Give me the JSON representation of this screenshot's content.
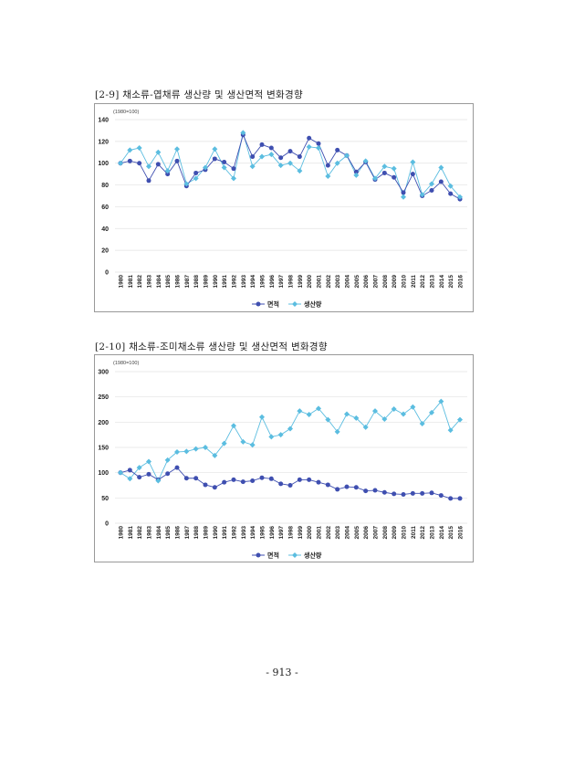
{
  "page_number": "- 913 -",
  "chart_data": [
    {
      "type": "line",
      "title": "[2-9] 채소류-엽채류 생산량 및 생산면적 변화경향",
      "unit_note": "(1980=100)",
      "ylim": [
        0,
        140
      ],
      "yticks": [
        0,
        20,
        40,
        60,
        80,
        100,
        120,
        140
      ],
      "categories": [
        "1980",
        "1981",
        "1982",
        "1983",
        "1984",
        "1985",
        "1986",
        "1987",
        "1988",
        "1989",
        "1990",
        "1991",
        "1992",
        "1993",
        "1994",
        "1995",
        "1996",
        "1997",
        "1998",
        "1999",
        "2000",
        "2001",
        "2002",
        "2003",
        "2004",
        "2005",
        "2006",
        "2007",
        "2008",
        "2009",
        "2010",
        "2011",
        "2012",
        "2013",
        "2014",
        "2015",
        "2016"
      ],
      "legend_position": "bottom",
      "grid": true,
      "series": [
        {
          "name": "면적",
          "color": "#3f4fb0",
          "marker": "circle",
          "values": [
            100,
            102,
            100,
            84,
            99,
            90,
            102,
            79,
            91,
            94,
            104,
            101,
            95,
            126,
            106,
            117,
            114,
            105,
            111,
            106,
            123,
            118,
            98,
            112,
            107,
            92,
            101,
            85,
            91,
            87,
            73,
            90,
            70,
            75,
            83,
            72,
            67
          ]
        },
        {
          "name": "생산량",
          "color": "#5bbde0",
          "marker": "diamond",
          "values": [
            100,
            112,
            114,
            97,
            110,
            93,
            113,
            81,
            86,
            96,
            113,
            96,
            86,
            128,
            97,
            106,
            108,
            98,
            100,
            93,
            115,
            114,
            88,
            100,
            107,
            89,
            102,
            86,
            97,
            95,
            69,
            101,
            71,
            81,
            96,
            79,
            69
          ]
        }
      ]
    },
    {
      "type": "line",
      "title": "[2-10] 채소류-조미채소류 생산량 및 생산면적 변화경향",
      "unit_note": "(1980=100)",
      "ylim": [
        0,
        300
      ],
      "yticks": [
        0,
        50,
        100,
        150,
        200,
        250,
        300
      ],
      "categories": [
        "1980",
        "1981",
        "1982",
        "1983",
        "1984",
        "1985",
        "1986",
        "1987",
        "1988",
        "1989",
        "1990",
        "1991",
        "1992",
        "1993",
        "1994",
        "1995",
        "1996",
        "1997",
        "1998",
        "1999",
        "2000",
        "2001",
        "2002",
        "2003",
        "2004",
        "2005",
        "2006",
        "2007",
        "2008",
        "2009",
        "2010",
        "2011",
        "2012",
        "2013",
        "2014",
        "2015",
        "2016"
      ],
      "legend_position": "bottom",
      "grid": true,
      "series": [
        {
          "name": "면적",
          "color": "#3f4fb0",
          "marker": "circle",
          "values": [
            100,
            105,
            91,
            97,
            86,
            98,
            110,
            89,
            89,
            76,
            71,
            81,
            86,
            82,
            84,
            90,
            88,
            78,
            75,
            86,
            86,
            81,
            76,
            67,
            72,
            71,
            64,
            65,
            61,
            58,
            57,
            59,
            59,
            60,
            55,
            49,
            49
          ]
        },
        {
          "name": "생산량",
          "color": "#5bbde0",
          "marker": "diamond",
          "values": [
            100,
            88,
            110,
            122,
            84,
            125,
            141,
            142,
            147,
            150,
            134,
            158,
            193,
            161,
            155,
            210,
            171,
            175,
            187,
            222,
            215,
            227,
            205,
            181,
            216,
            208,
            190,
            222,
            206,
            226,
            216,
            230,
            197,
            219,
            241,
            184,
            205
          ]
        }
      ]
    }
  ]
}
